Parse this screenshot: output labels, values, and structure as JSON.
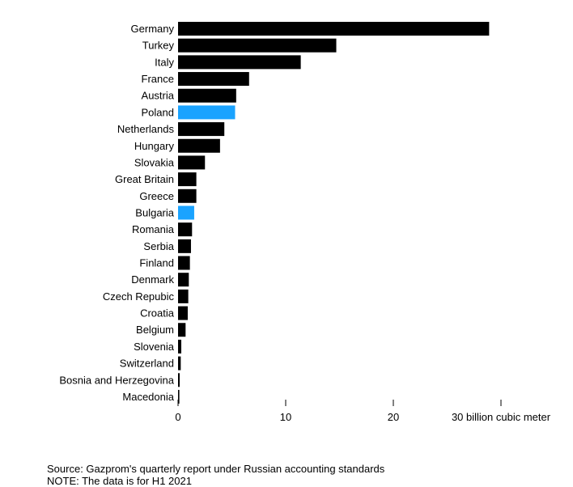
{
  "chart_data": {
    "type": "bar",
    "orientation": "horizontal",
    "categories": [
      "Germany",
      "Turkey",
      "Italy",
      "France",
      "Austria",
      "Poland",
      "Netherlands",
      "Hungary",
      "Slovakia",
      "Great Britain",
      "Greece",
      "Bulgaria",
      "Romania",
      "Serbia",
      "Finland",
      "Denmark",
      "Czech Repubic",
      "Croatia",
      "Belgium",
      "Slovenia",
      "Switzerland",
      "Bosnia and Herzegovina",
      "Macedonia"
    ],
    "values": [
      28.9,
      14.7,
      11.4,
      6.6,
      5.4,
      5.3,
      4.3,
      3.9,
      2.5,
      1.7,
      1.7,
      1.5,
      1.3,
      1.2,
      1.1,
      1.0,
      0.95,
      0.9,
      0.7,
      0.3,
      0.25,
      0.15,
      0.12
    ],
    "highlighted": [
      "Poland",
      "Bulgaria"
    ],
    "xlim": [
      0,
      30
    ],
    "xticks": [
      0,
      10,
      20,
      30
    ],
    "xtick_labels": [
      "0",
      "10",
      "20",
      "30 billion cubic meter"
    ],
    "grid": false,
    "colors": {
      "default": "#000000",
      "highlight": "#1aa3ff"
    }
  },
  "footer": {
    "source": "Source: Gazprom's quarterly report under Russian accounting standards",
    "note": "NOTE: The data is for H1 2021"
  }
}
